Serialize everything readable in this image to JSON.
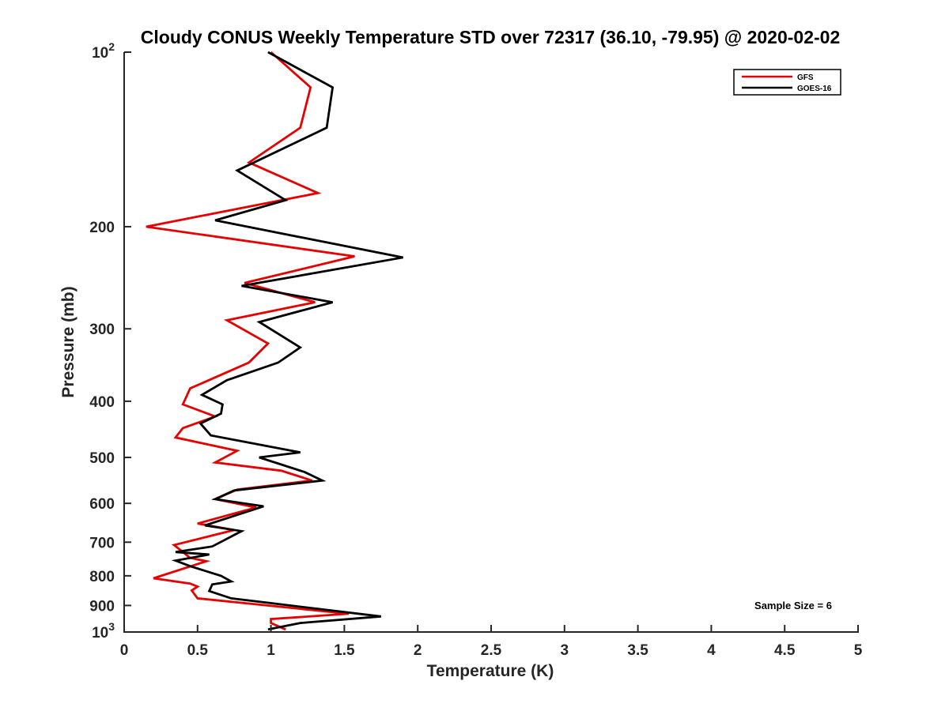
{
  "chart_data": {
    "type": "line",
    "title": "Cloudy CONUS Weekly Temperature STD over 72317 (36.10, -79.95) @ 2020-02-02",
    "xlabel": "Temperature (K)",
    "ylabel": "Pressure (mb)",
    "xlim": [
      0,
      5
    ],
    "ylim": [
      100,
      1000
    ],
    "y_scale": "log",
    "y_reversed": true,
    "grid": false,
    "legend_position": "top-right",
    "x_ticks": [
      "0",
      "0.5",
      "1",
      "1.5",
      "2",
      "2.5",
      "3",
      "3.5",
      "4",
      "4.5",
      "5"
    ],
    "y_ticks": [
      {
        "value": 100,
        "base": "10",
        "exp": "2"
      },
      {
        "value": 200,
        "label": "200"
      },
      {
        "value": 300,
        "label": "300"
      },
      {
        "value": 400,
        "label": "400"
      },
      {
        "value": 500,
        "label": "500"
      },
      {
        "value": 600,
        "label": "600"
      },
      {
        "value": 700,
        "label": "700"
      },
      {
        "value": 800,
        "label": "800"
      },
      {
        "value": 900,
        "label": "900"
      },
      {
        "value": 1000,
        "base": "10",
        "exp": "3"
      }
    ],
    "series": [
      {
        "name": "GFS",
        "color": "#e60000",
        "points": [
          [
            1.0,
            100
          ],
          [
            1.27,
            115
          ],
          [
            1.2,
            135
          ],
          [
            0.85,
            155
          ],
          [
            1.32,
            175
          ],
          [
            0.15,
            200
          ],
          [
            1.57,
            225
          ],
          [
            0.82,
            250
          ],
          [
            1.3,
            270
          ],
          [
            0.7,
            290
          ],
          [
            0.98,
            318
          ],
          [
            0.85,
            343
          ],
          [
            0.45,
            380
          ],
          [
            0.4,
            405
          ],
          [
            0.62,
            425
          ],
          [
            0.4,
            445
          ],
          [
            0.35,
            462
          ],
          [
            0.77,
            487
          ],
          [
            0.62,
            510
          ],
          [
            1.07,
            527
          ],
          [
            1.28,
            548
          ],
          [
            0.77,
            568
          ],
          [
            0.62,
            590
          ],
          [
            0.9,
            610
          ],
          [
            0.5,
            650
          ],
          [
            0.75,
            667
          ],
          [
            0.34,
            708
          ],
          [
            0.45,
            745
          ],
          [
            0.56,
            755
          ],
          [
            0.2,
            808
          ],
          [
            0.45,
            825
          ],
          [
            0.5,
            835
          ],
          [
            0.46,
            848
          ],
          [
            0.5,
            875
          ],
          [
            1.53,
            930
          ],
          [
            1.0,
            950
          ],
          [
            1.0,
            965
          ],
          [
            1.1,
            990
          ]
        ]
      },
      {
        "name": "GOES-16",
        "color": "#000000",
        "points": [
          [
            0.98,
            100
          ],
          [
            1.42,
            115
          ],
          [
            1.38,
            135
          ],
          [
            0.77,
            160
          ],
          [
            1.1,
            180
          ],
          [
            0.62,
            195
          ],
          [
            1.9,
            226
          ],
          [
            0.8,
            253
          ],
          [
            1.42,
            270
          ],
          [
            0.92,
            292
          ],
          [
            1.2,
            323
          ],
          [
            1.05,
            343
          ],
          [
            0.7,
            368
          ],
          [
            0.53,
            390
          ],
          [
            0.67,
            405
          ],
          [
            0.66,
            420
          ],
          [
            0.52,
            437
          ],
          [
            0.59,
            458
          ],
          [
            1.2,
            490
          ],
          [
            0.92,
            500
          ],
          [
            1.23,
            530
          ],
          [
            1.35,
            548
          ],
          [
            0.75,
            570
          ],
          [
            0.62,
            590
          ],
          [
            0.95,
            607
          ],
          [
            0.55,
            655
          ],
          [
            0.8,
            670
          ],
          [
            0.6,
            712
          ],
          [
            0.35,
            728
          ],
          [
            0.58,
            735
          ],
          [
            0.35,
            753
          ],
          [
            0.45,
            770
          ],
          [
            0.66,
            800
          ],
          [
            0.73,
            818
          ],
          [
            0.6,
            828
          ],
          [
            0.58,
            850
          ],
          [
            0.73,
            875
          ],
          [
            1.75,
            940
          ],
          [
            1.2,
            965
          ],
          [
            0.98,
            990
          ]
        ]
      }
    ],
    "annotations": [
      "Sample Size = 6"
    ]
  }
}
